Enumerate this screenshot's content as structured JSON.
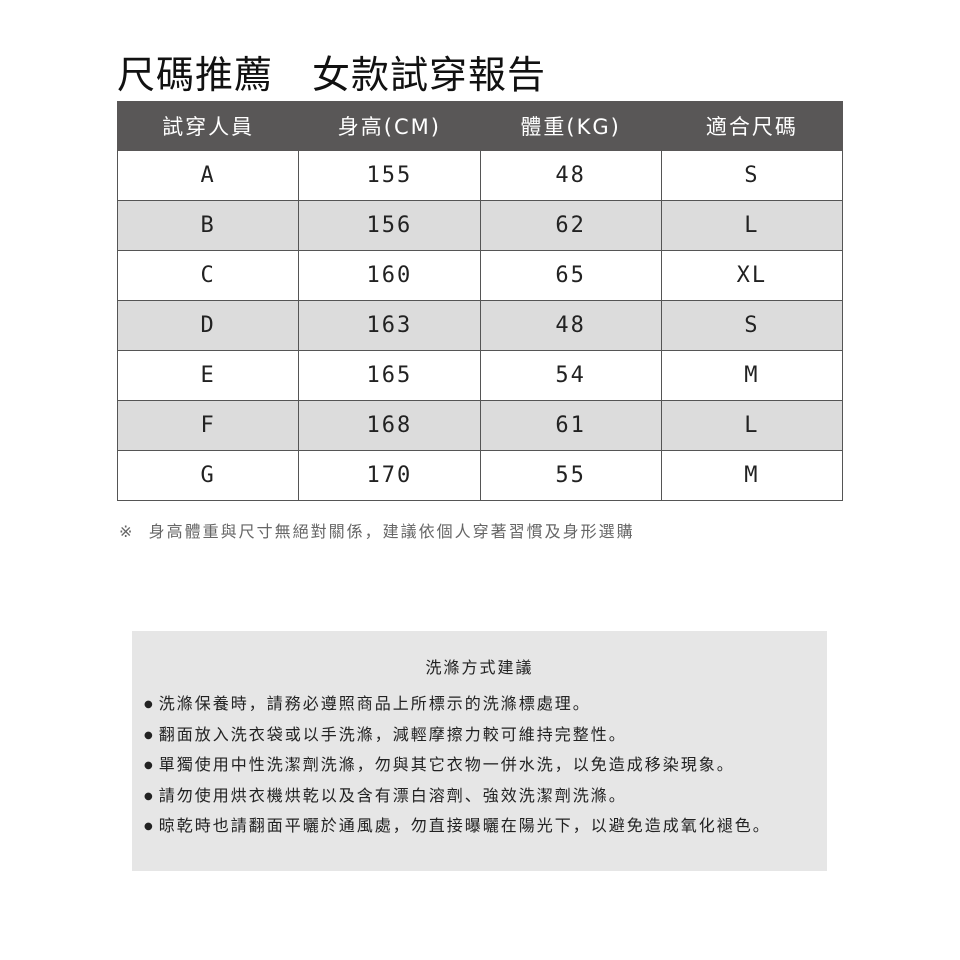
{
  "title": "尺碼推薦　女款試穿報告",
  "table": {
    "headers": [
      "試穿人員",
      "身高(CM)",
      "體重(KG)",
      "適合尺碼"
    ],
    "rows": [
      [
        "A",
        "155",
        "48",
        "S"
      ],
      [
        "B",
        "156",
        "62",
        "L"
      ],
      [
        "C",
        "160",
        "65",
        "XL"
      ],
      [
        "D",
        "163",
        "48",
        "S"
      ],
      [
        "E",
        "165",
        "54",
        "M"
      ],
      [
        "F",
        "168",
        "61",
        "L"
      ],
      [
        "G",
        "170",
        "55",
        "M"
      ]
    ]
  },
  "note": "※  身高體重與尺寸無絕對關係，建議依個人穿著習慣及身形選購",
  "wash": {
    "title": "洗滌方式建議",
    "items": [
      "洗滌保養時，請務必遵照商品上所標示的洗滌標處理。",
      "翻面放入洗衣袋或以手洗滌，減輕摩擦力較可維持完整性。",
      "單獨使用中性洗潔劑洗滌，勿與其它衣物一併水洗，以免造成移染現象。",
      "請勿使用烘衣機烘乾以及含有漂白溶劑、強效洗潔劑洗滌。",
      "晾乾時也請翻面平曬於通風處，勿直接曝曬在陽光下，以避免造成氧化褪色。"
    ]
  },
  "colors": {
    "header_bg": "#595757",
    "alt_row": "#dcdcdc",
    "wash_bg": "#e6e6e6"
  }
}
